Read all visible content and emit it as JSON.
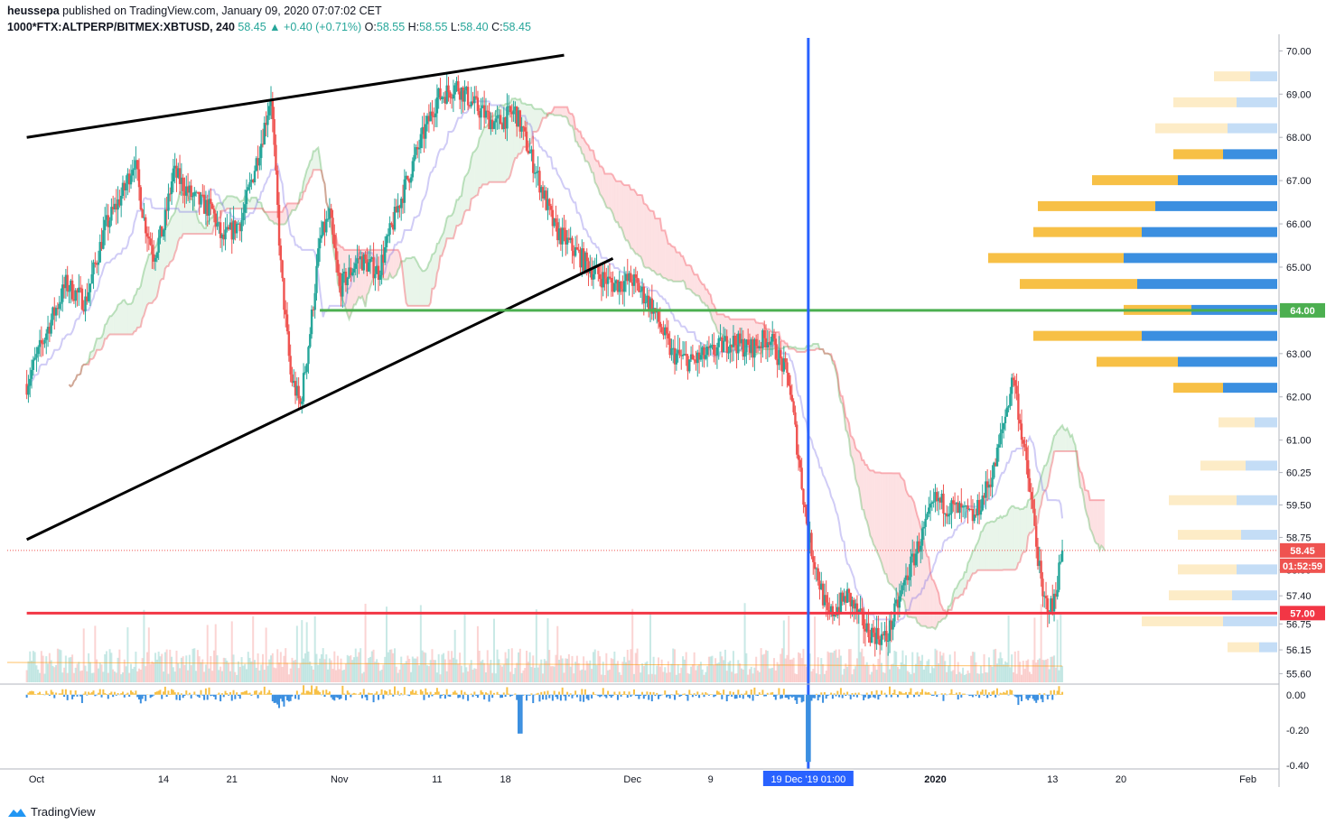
{
  "header": {
    "author": "heussepa",
    "published": "published on TradingView.com, January 09, 2020 07:07:02 CET",
    "symbol": "1000*FTX:ALTPERP/BITMEX:XBTUSD, 240",
    "last": "58.45",
    "change": "+0.40 (+0.71%)",
    "o_label": "O:",
    "o": "58.55",
    "h_label": "H:",
    "h": "58.55",
    "l_label": "L:",
    "l": "58.40",
    "c_label": "C:",
    "c": "58.45"
  },
  "footer": {
    "brand": "TradingView"
  },
  "colors": {
    "up": "#26a69a",
    "down": "#ef5350",
    "green_line": "#4caf50",
    "red_line": "#f23645",
    "blue_line": "#2962ff",
    "vp_up": "#f7c046",
    "vp_down": "#3b8fe0"
  },
  "chart_data": {
    "type": "candlestick",
    "price_axis": {
      "ticks": [
        "70.00",
        "69.00",
        "68.00",
        "67.00",
        "66.00",
        "65.00",
        "64.00",
        "63.00",
        "62.00",
        "61.00",
        "60.25",
        "59.50",
        "58.75",
        "58.00",
        "57.40",
        "56.75",
        "56.15",
        "55.60"
      ],
      "ylim": [
        55.4,
        70.3
      ]
    },
    "osc_axis": {
      "ticks": [
        "0.00",
        "-0.20",
        "-0.40"
      ],
      "ylim": [
        -0.42,
        0.06
      ]
    },
    "time_axis": {
      "ticks": [
        "Oct",
        "14",
        "21",
        "Nov",
        "11",
        "18",
        "Dec",
        "9",
        "2020",
        "13",
        "20",
        "Feb"
      ],
      "days": [
        1,
        14,
        21,
        32,
        42,
        49,
        62,
        70,
        93,
        105,
        112,
        125
      ],
      "highlight": [
        "19 Dec '19",
        "01:00"
      ],
      "highlight_day": 80
    },
    "price_labels": {
      "current": "58.45",
      "countdown": "01:52:59",
      "green_level": "64.00",
      "red_level": "57.00"
    },
    "levels": [
      {
        "price": 64.0,
        "day_from": 30,
        "color": "green"
      },
      {
        "price": 57.0,
        "day_from": 0,
        "color": "red"
      }
    ],
    "trendlines": [
      {
        "from": [
          0,
          68.0
        ],
        "to": [
          55,
          69.9
        ]
      },
      {
        "from": [
          0,
          58.7
        ],
        "to": [
          60,
          65.2
        ]
      }
    ],
    "vertical_line_day": 80,
    "price_path": [
      [
        0,
        62.3
      ],
      [
        2,
        63.5
      ],
      [
        4,
        64.6
      ],
      [
        6,
        64.2
      ],
      [
        8,
        65.9
      ],
      [
        10,
        66.8
      ],
      [
        11,
        67.5
      ],
      [
        12,
        66.1
      ],
      [
        13,
        65.3
      ],
      [
        14,
        65.9
      ],
      [
        15,
        67.2
      ],
      [
        17,
        66.6
      ],
      [
        19,
        66.3
      ],
      [
        20,
        65.6
      ],
      [
        22,
        66.1
      ],
      [
        24,
        67.9
      ],
      [
        25,
        69.0
      ],
      [
        26,
        65.0
      ],
      [
        27,
        62.5
      ],
      [
        28,
        61.8
      ],
      [
        29,
        63.5
      ],
      [
        30,
        65.6
      ],
      [
        31,
        66.2
      ],
      [
        32,
        64.5
      ],
      [
        34,
        65.2
      ],
      [
        36,
        64.9
      ],
      [
        38,
        66.4
      ],
      [
        40,
        67.7
      ],
      [
        42,
        68.9
      ],
      [
        44,
        69.2
      ],
      [
        46,
        68.7
      ],
      [
        48,
        68.3
      ],
      [
        50,
        68.6
      ],
      [
        52,
        67.3
      ],
      [
        54,
        65.9
      ],
      [
        56,
        65.4
      ],
      [
        58,
        64.9
      ],
      [
        60,
        64.6
      ],
      [
        62,
        64.7
      ],
      [
        64,
        64.1
      ],
      [
        66,
        63.0
      ],
      [
        68,
        62.8
      ],
      [
        70,
        63.0
      ],
      [
        72,
        63.3
      ],
      [
        74,
        63.1
      ],
      [
        76,
        63.4
      ],
      [
        78,
        62.4
      ],
      [
        80,
        58.8
      ],
      [
        82,
        56.9
      ],
      [
        84,
        57.4
      ],
      [
        86,
        56.6
      ],
      [
        88,
        56.4
      ],
      [
        90,
        57.8
      ],
      [
        92,
        59.0
      ],
      [
        93,
        59.6
      ],
      [
        95,
        59.4
      ],
      [
        97,
        59.2
      ],
      [
        99,
        60.3
      ],
      [
        101,
        62.5
      ],
      [
        103,
        59.3
      ],
      [
        104,
        57.3
      ],
      [
        105,
        57.1
      ],
      [
        106,
        58.45
      ]
    ],
    "volume_profile": [
      {
        "price": 69.4,
        "up": 40,
        "down": 30,
        "faded": true
      },
      {
        "price": 68.8,
        "up": 70,
        "down": 45,
        "faded": true
      },
      {
        "price": 68.2,
        "up": 80,
        "down": 55,
        "faded": true
      },
      {
        "price": 67.6,
        "up": 55,
        "down": 60,
        "faded": false
      },
      {
        "price": 67.0,
        "up": 95,
        "down": 110,
        "faded": false
      },
      {
        "price": 66.4,
        "up": 130,
        "down": 135,
        "faded": false
      },
      {
        "price": 65.8,
        "up": 120,
        "down": 150,
        "faded": false
      },
      {
        "price": 65.2,
        "up": 150,
        "down": 170,
        "faded": false
      },
      {
        "price": 64.6,
        "up": 130,
        "down": 155,
        "faded": false
      },
      {
        "price": 64.0,
        "up": 75,
        "down": 95,
        "faded": false
      },
      {
        "price": 63.4,
        "up": 120,
        "down": 150,
        "faded": false
      },
      {
        "price": 62.8,
        "up": 90,
        "down": 110,
        "faded": false
      },
      {
        "price": 62.2,
        "up": 55,
        "down": 60,
        "faded": false
      },
      {
        "price": 61.4,
        "up": 40,
        "down": 25,
        "faded": true
      },
      {
        "price": 60.4,
        "up": 50,
        "down": 35,
        "faded": true
      },
      {
        "price": 59.6,
        "up": 75,
        "down": 45,
        "faded": true
      },
      {
        "price": 58.8,
        "up": 70,
        "down": 40,
        "faded": true
      },
      {
        "price": 58.0,
        "up": 65,
        "down": 45,
        "faded": true
      },
      {
        "price": 57.4,
        "up": 70,
        "down": 50,
        "faded": true
      },
      {
        "price": 56.8,
        "up": 90,
        "down": 60,
        "faded": true
      },
      {
        "price": 56.2,
        "up": 35,
        "down": 20,
        "faded": true
      }
    ]
  }
}
